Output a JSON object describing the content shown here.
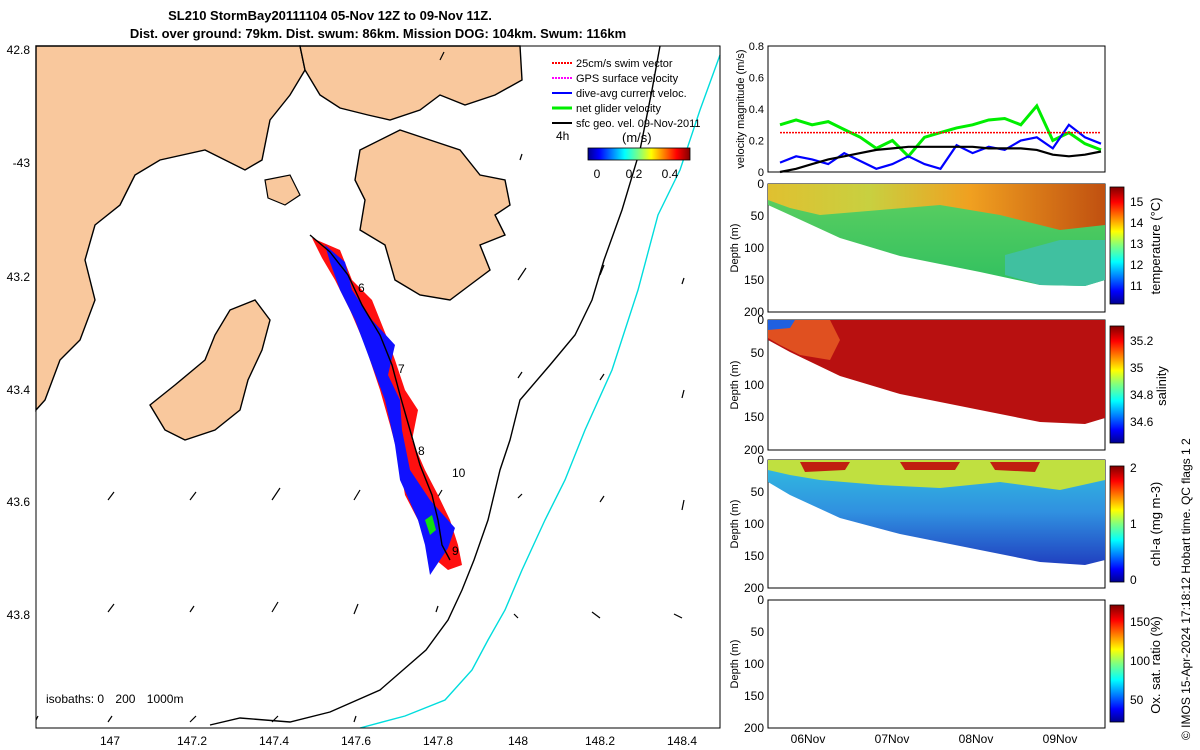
{
  "title": {
    "line1": "SL210 StormBay20111104 05-Nov 12Z to 09-Nov 11Z.",
    "line2": "Dist. over ground: 79km. Dist. swum: 86km. Mission DOG: 104km. Swum: 116km"
  },
  "map": {
    "lon_ticks": [
      "147",
      "147.2",
      "147.4",
      "147.6",
      "147.8",
      "148",
      "148.2",
      "148.4"
    ],
    "lat_ticks": [
      "42.8",
      "-43",
      "43.2",
      "43.4",
      "43.6",
      "43.8"
    ],
    "lon_range": [
      146.82,
      148.5
    ],
    "lat_range": [
      -43.98,
      -42.8
    ],
    "legend": [
      {
        "label": "25cm/s swim vector",
        "color": "#ff0000"
      },
      {
        "label": "GPS surface velocity",
        "color": "#ff00ff"
      },
      {
        "label": "dive-avg current veloc.",
        "color": "#0000ff"
      },
      {
        "label": "net glider velocity",
        "color": "#00ee00"
      },
      {
        "label": "sfc geo. vel. 09-Nov-2011",
        "color": "#000000"
      }
    ],
    "colorbar": {
      "label": "(m/s)",
      "ticks": [
        "0",
        "0.2",
        "0.4"
      ],
      "prefix": "4h"
    },
    "day_labels": [
      "6",
      "7",
      "8",
      "9",
      "10"
    ],
    "isobaths": {
      "label": "isobaths: 0",
      "v200": "200",
      "v1000": "1000m"
    },
    "colors": {
      "land": "#f9c89d",
      "isobath200": "#000000",
      "isobath1000": "#00dddd"
    }
  },
  "chart_data": [
    {
      "type": "line",
      "title": "",
      "ylabel": "velocity magnitude (m/s)",
      "ylim": [
        0,
        0.8
      ],
      "yticks": [
        "0",
        "0.2",
        "0.4",
        "0.6",
        "0.8"
      ],
      "x": [
        5.7,
        5.9,
        6.1,
        6.3,
        6.5,
        6.7,
        6.9,
        7.1,
        7.3,
        7.5,
        7.7,
        7.9,
        8.1,
        8.3,
        8.5,
        8.7,
        8.9,
        9.1,
        9.3,
        9.5,
        9.7
      ],
      "series": [
        {
          "name": "net glider velocity",
          "color": "#00ee00",
          "values": [
            0.3,
            0.33,
            0.3,
            0.32,
            0.27,
            0.22,
            0.15,
            0.2,
            0.1,
            0.22,
            0.25,
            0.28,
            0.3,
            0.33,
            0.34,
            0.3,
            0.42,
            0.2,
            0.25,
            0.18,
            0.14
          ]
        },
        {
          "name": "dive-avg current veloc.",
          "color": "#0000ff",
          "values": [
            0.06,
            0.1,
            0.08,
            0.05,
            0.12,
            0.07,
            0.02,
            0.05,
            0.1,
            0.05,
            0.02,
            0.17,
            0.12,
            0.16,
            0.14,
            0.2,
            0.22,
            0.15,
            0.3,
            0.22,
            0.18
          ]
        },
        {
          "name": "sfc geo. vel.",
          "color": "#000000",
          "values": [
            0.0,
            0.02,
            0.05,
            0.08,
            0.1,
            0.12,
            0.14,
            0.15,
            0.16,
            0.16,
            0.16,
            0.16,
            0.16,
            0.15,
            0.15,
            0.15,
            0.14,
            0.11,
            0.1,
            0.11,
            0.13
          ]
        },
        {
          "name": "25cm/s swim vector",
          "color": "#ff0000",
          "values": [
            0.25,
            0.25,
            0.25,
            0.25,
            0.25,
            0.25,
            0.25,
            0.25,
            0.25,
            0.25,
            0.25,
            0.25,
            0.25,
            0.25,
            0.25,
            0.25,
            0.25,
            0.25,
            0.25,
            0.25,
            0.25
          ]
        }
      ]
    },
    {
      "type": "heatmap",
      "ylabel": "Depth (m)",
      "colorbar_label": "temperature (°C)",
      "yticks": [
        "0",
        "50",
        "100",
        "150",
        "200"
      ],
      "cticks": [
        "11",
        "12",
        "13",
        "14",
        "15"
      ],
      "crange": [
        10.3,
        15.7
      ]
    },
    {
      "type": "heatmap",
      "ylabel": "Depth (m)",
      "colorbar_label": "salinity",
      "yticks": [
        "0",
        "50",
        "100",
        "150",
        "200"
      ],
      "cticks": [
        "34.6",
        "34.8",
        "35",
        "35.2"
      ],
      "crange": [
        34.45,
        35.3
      ]
    },
    {
      "type": "heatmap",
      "ylabel": "Depth (m)",
      "colorbar_label": "chl-a (mg m-3)",
      "yticks": [
        "0",
        "50",
        "100",
        "150",
        "200"
      ],
      "cticks": [
        "0",
        "1",
        "2"
      ],
      "crange": [
        0,
        2
      ]
    },
    {
      "type": "heatmap",
      "ylabel": "Depth (m)",
      "colorbar_label": "Ox. sat. ratio (%)",
      "yticks": [
        "0",
        "50",
        "100",
        "150",
        "200"
      ],
      "cticks": [
        "50",
        "100",
        "150"
      ],
      "crange": [
        25,
        175
      ]
    }
  ],
  "time_axis": {
    "ticks": [
      "06Nov",
      "07Nov",
      "08Nov",
      "09Nov"
    ]
  },
  "side_note": "© IMOS 15-Apr-2024 17:18:12 Hobart time. QC flags 1  2"
}
